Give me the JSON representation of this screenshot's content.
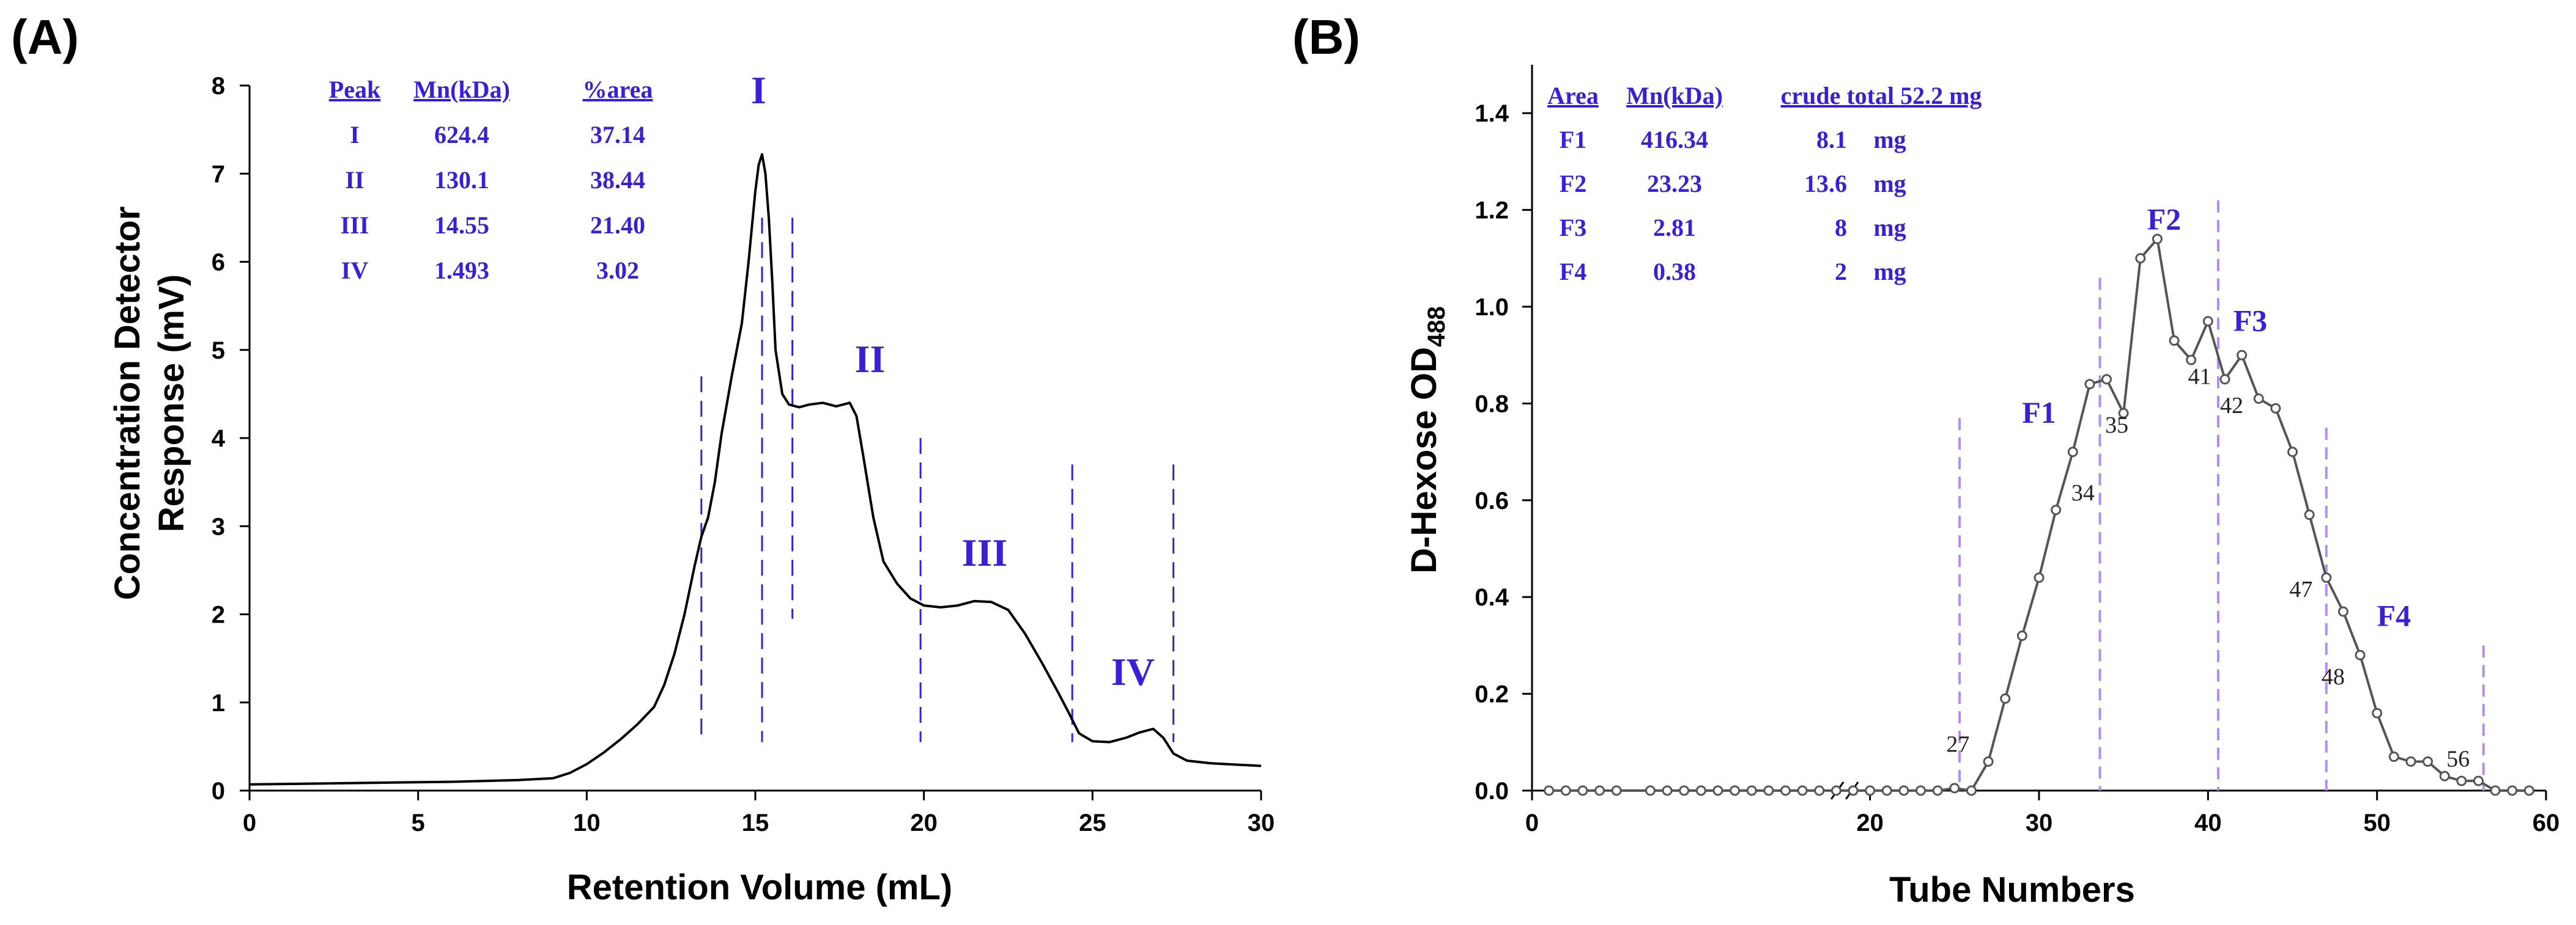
{
  "figure": {
    "panel_a_label": "(A)",
    "panel_b_label": "(B)"
  },
  "chart_data": [
    {
      "type": "line",
      "panel": "A",
      "xlabel": "Retention Volume (mL)",
      "ylabel_line1": "Concentration Detector",
      "ylabel_line2": "Response (mV)",
      "xlim": [
        0,
        30
      ],
      "ylim": [
        0,
        8
      ],
      "xticks": [
        0,
        5,
        10,
        15,
        20,
        25,
        30
      ],
      "yticks": [
        0,
        1,
        2,
        3,
        4,
        5,
        6,
        7,
        8
      ],
      "series": [
        {
          "name": "Concentration detector response",
          "color": "#000000",
          "x": [
            0,
            2,
            4,
            6,
            8,
            9,
            9.5,
            10,
            10.5,
            11,
            11.5,
            12,
            12.3,
            12.6,
            12.9,
            13.2,
            13.4,
            13.6,
            13.8,
            14.0,
            14.3,
            14.6,
            14.8,
            15.0,
            15.1,
            15.2,
            15.3,
            15.4,
            15.5,
            15.6,
            15.8,
            16.0,
            16.3,
            16.6,
            17.0,
            17.4,
            17.8,
            18.0,
            18.2,
            18.5,
            18.8,
            19.2,
            19.6,
            20.0,
            20.5,
            21.0,
            21.5,
            22.0,
            22.5,
            23.0,
            23.5,
            24.0,
            24.3,
            24.6,
            25.0,
            25.5,
            26.0,
            26.4,
            26.8,
            27.1,
            27.4,
            27.8,
            28.5,
            29.0,
            30.0
          ],
          "y": [
            0.07,
            0.08,
            0.09,
            0.1,
            0.12,
            0.14,
            0.2,
            0.3,
            0.43,
            0.58,
            0.75,
            0.95,
            1.2,
            1.55,
            2.0,
            2.55,
            2.88,
            3.1,
            3.5,
            4.05,
            4.7,
            5.3,
            6.0,
            6.8,
            7.1,
            7.22,
            7.0,
            6.5,
            5.8,
            5.0,
            4.5,
            4.38,
            4.35,
            4.38,
            4.4,
            4.36,
            4.4,
            4.25,
            3.8,
            3.1,
            2.6,
            2.35,
            2.18,
            2.1,
            2.08,
            2.1,
            2.15,
            2.14,
            2.05,
            1.78,
            1.45,
            1.1,
            0.88,
            0.65,
            0.56,
            0.55,
            0.6,
            0.66,
            0.7,
            0.6,
            0.42,
            0.34,
            0.31,
            0.3,
            0.28
          ]
        }
      ],
      "vlines": [
        13.4,
        15.2,
        16.1,
        19.9,
        24.4,
        27.4
      ],
      "peak_labels": [
        {
          "text": "I",
          "x": 15.1,
          "y": 7.8
        },
        {
          "text": "II",
          "x": 18.4,
          "y": 4.75
        },
        {
          "text": "III",
          "x": 21.8,
          "y": 2.55
        },
        {
          "text": "IV",
          "x": 26.2,
          "y": 1.2
        }
      ],
      "table": {
        "headers": [
          "Peak",
          "Mn(kDa)",
          "%area"
        ],
        "rows": [
          [
            "I",
            "624.4",
            "37.14"
          ],
          [
            "II",
            "130.1",
            "38.44"
          ],
          [
            "III",
            "14.55",
            "21.40"
          ],
          [
            "IV",
            "1.493",
            "3.02"
          ]
        ]
      }
    },
    {
      "type": "line",
      "panel": "B",
      "xlabel": "Tube Numbers",
      "ylabel_main": "D-Hexose OD",
      "ylabel_sub": "488",
      "xlim": [
        0,
        60
      ],
      "ylim": [
        0,
        1.5
      ],
      "xticks": [
        0,
        20,
        30,
        40,
        50,
        60
      ],
      "yticks": [
        0.0,
        0.2,
        0.4,
        0.6,
        0.8,
        1.0,
        1.2,
        1.4
      ],
      "ytick_labels": [
        "0.0",
        "0.2",
        "0.4",
        "0.6",
        "0.8",
        "1.0",
        "1.2",
        "1.4"
      ],
      "axis_break_at": 18.5,
      "series": [
        {
          "name": "D-Hexose OD488",
          "color": "#555555",
          "x": [
            1,
            2,
            3,
            4,
            5,
            7,
            8,
            9,
            10,
            11,
            12,
            13,
            14,
            15,
            16,
            17,
            18,
            19,
            20,
            21,
            22,
            23,
            24,
            25,
            26,
            27,
            28,
            29,
            30,
            31,
            32,
            33,
            34,
            35,
            36,
            37,
            38,
            39,
            40,
            41,
            42,
            43,
            44,
            45,
            46,
            47,
            48,
            49,
            50,
            51,
            52,
            53,
            54,
            55,
            56,
            57,
            58,
            59
          ],
          "y": [
            0,
            0,
            0,
            0,
            0,
            0,
            0,
            0,
            0,
            0,
            0,
            0,
            0,
            0,
            0,
            0,
            0,
            0,
            0,
            0,
            0,
            0,
            0,
            0.005,
            0.0,
            0.06,
            0.19,
            0.32,
            0.44,
            0.58,
            0.7,
            0.84,
            0.85,
            0.78,
            1.1,
            1.14,
            0.93,
            0.89,
            0.97,
            0.85,
            0.9,
            0.81,
            0.79,
            0.7,
            0.57,
            0.44,
            0.37,
            0.28,
            0.16,
            0.07,
            0.06,
            0.06,
            0.03,
            0.02,
            0.02,
            0.0,
            0.0,
            0.0
          ]
        }
      ],
      "point_labels": [
        {
          "text": "27",
          "x": 25.2,
          "y": 0.08
        },
        {
          "text": "34",
          "x": 32.6,
          "y": 0.6
        },
        {
          "text": "35",
          "x": 34.6,
          "y": 0.74
        },
        {
          "text": "41",
          "x": 39.5,
          "y": 0.84
        },
        {
          "text": "42",
          "x": 41.4,
          "y": 0.78
        },
        {
          "text": "47",
          "x": 45.5,
          "y": 0.4
        },
        {
          "text": "48",
          "x": 47.4,
          "y": 0.22
        },
        {
          "text": "56",
          "x": 54.8,
          "y": 0.05
        }
      ],
      "vlines": [
        {
          "x": 25.3,
          "top": 0.77
        },
        {
          "x": 33.6,
          "top": 1.06
        },
        {
          "x": 40.6,
          "top": 1.22
        },
        {
          "x": 47.0,
          "top": 0.75
        },
        {
          "x": 56.3,
          "top": 0.3
        }
      ],
      "area_labels": [
        {
          "text": "F1",
          "x": 30.0,
          "y": 0.76
        },
        {
          "text": "F2",
          "x": 37.4,
          "y": 1.16
        },
        {
          "text": "F3",
          "x": 42.5,
          "y": 0.95
        },
        {
          "text": "F4",
          "x": 51.0,
          "y": 0.34
        }
      ],
      "table": {
        "headers": [
          "Area",
          "Mn(kDa)",
          "crude total 52.2 mg"
        ],
        "rows": [
          [
            "F1",
            "416.34",
            "8.1",
            "mg"
          ],
          [
            "F2",
            "23.23",
            "13.6",
            "mg"
          ],
          [
            "F3",
            "2.81",
            "8",
            "mg"
          ],
          [
            "F4",
            "0.38",
            "2",
            "mg"
          ]
        ]
      },
      "colors": {
        "text": "#3b1fd6",
        "dash": "#b38cf0"
      }
    }
  ],
  "colors": {
    "panel_a_text": "#3b1fd6",
    "panel_a_dash": "#3b1fd6"
  }
}
